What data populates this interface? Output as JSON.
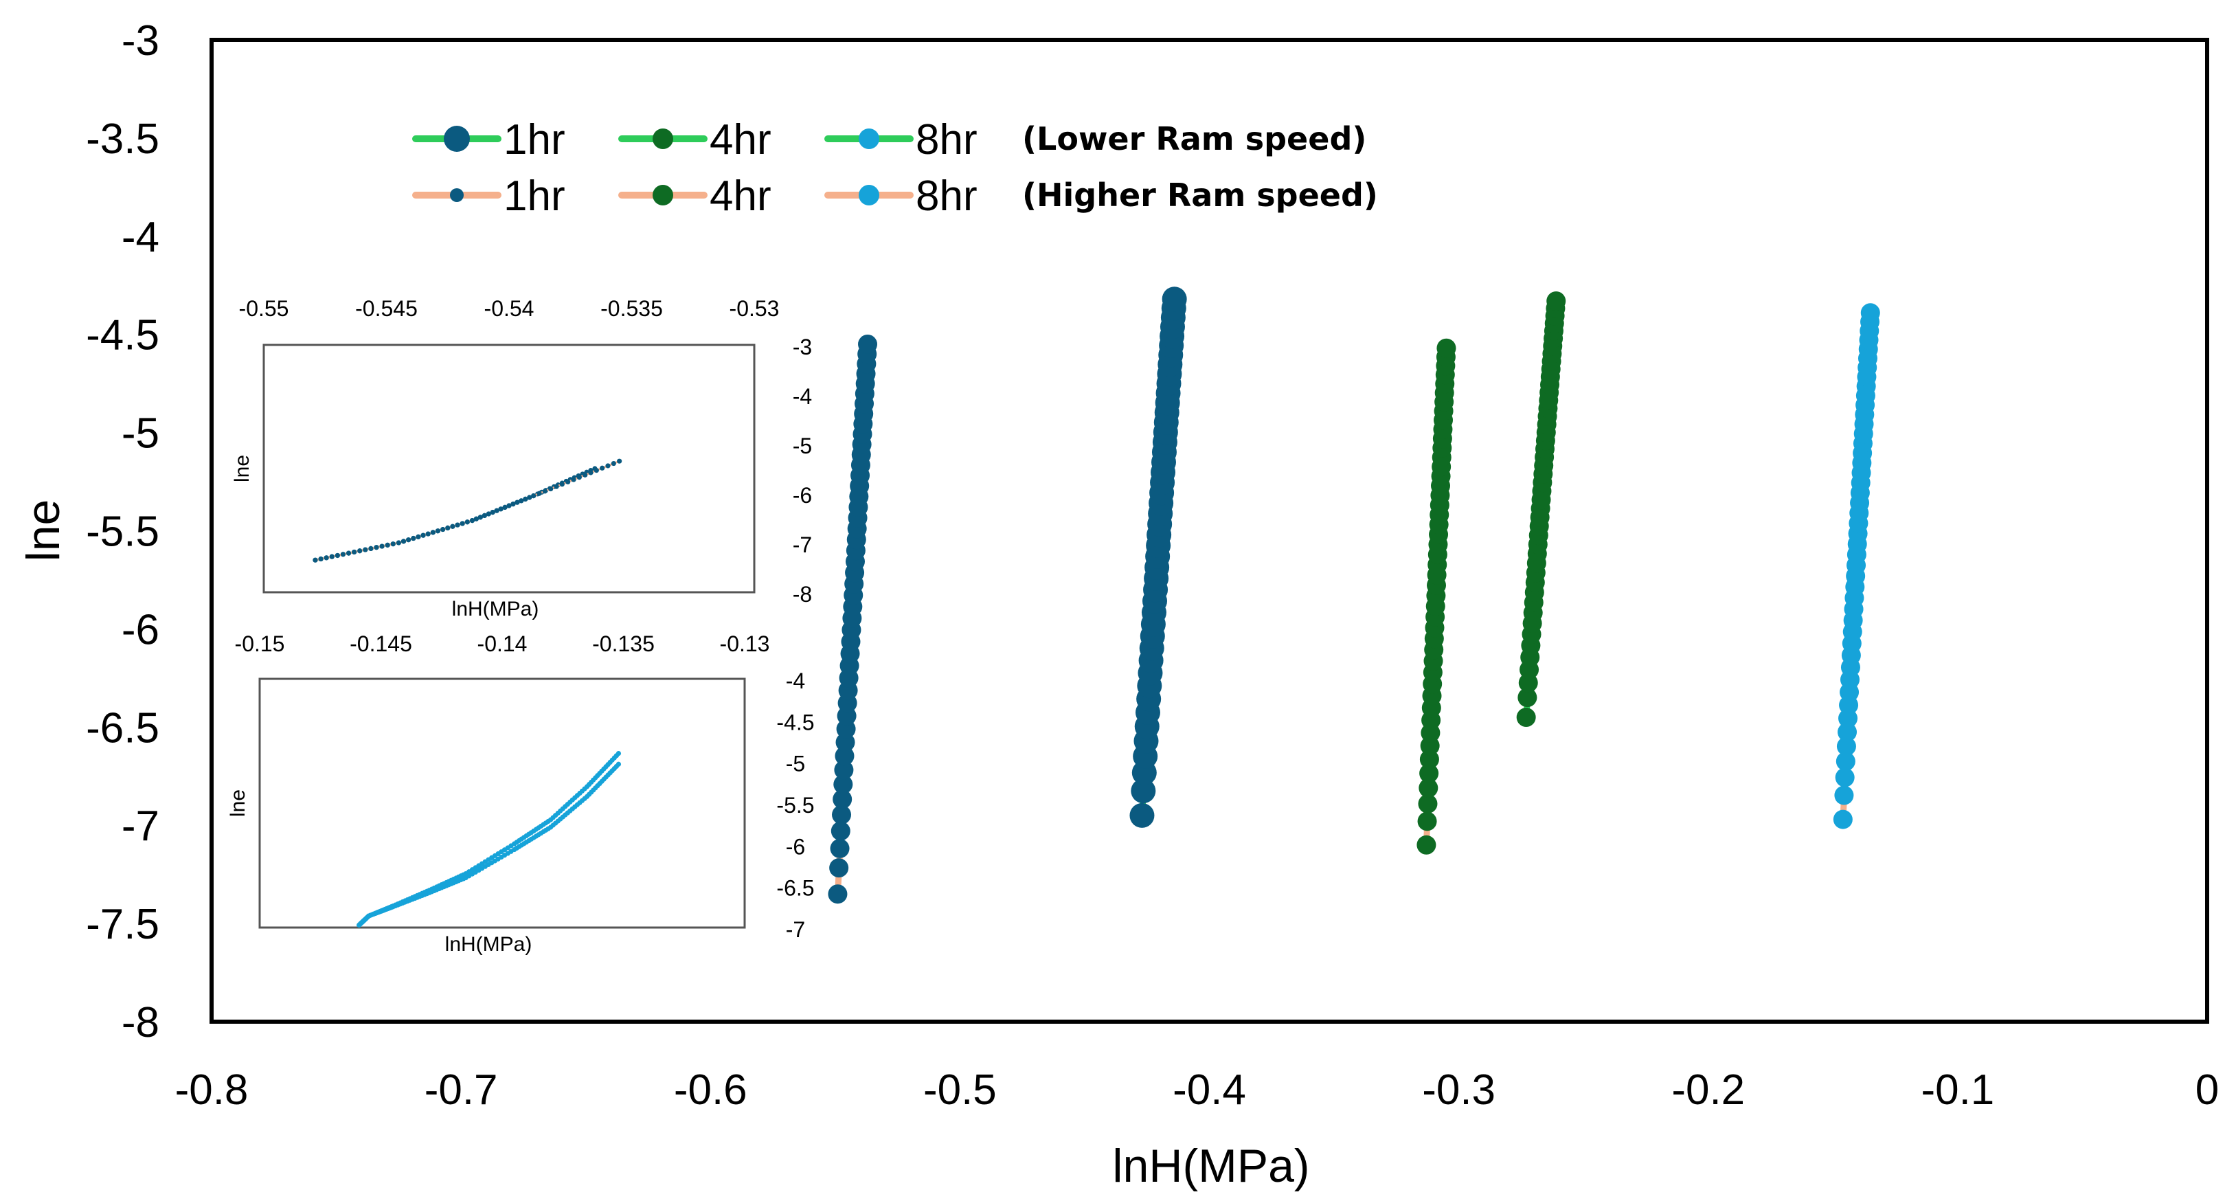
{
  "chart_data": {
    "type": "line",
    "title": "",
    "xlabel": "lnH(MPa)",
    "ylabel": "lne",
    "xlim": [
      -0.8,
      0
    ],
    "ylim": [
      -8,
      -3
    ],
    "grid": false,
    "x_ticks": [
      "-0.8",
      "-0.7",
      "-0.6",
      "-0.5",
      "-0.4",
      "-0.3",
      "-0.2",
      "-0.1",
      "0"
    ],
    "y_ticks": [
      "-3",
      "-3.5",
      "-4",
      "-4.5",
      "-5",
      "-5.5",
      "-6",
      "-6.5",
      "-7",
      "-7.5",
      "-8"
    ],
    "colors": {
      "lower_line": "#2ecc5a",
      "higher_line": "#f5b08c",
      "c1hr": "#0b5a80",
      "c4hr": "#0e6b23",
      "c8hr": "#16a3d9"
    },
    "legend": [
      {
        "label": "1hr",
        "group": "lower",
        "marker_color": "#0b5a80",
        "line_color": "#2ecc5a",
        "size": "large"
      },
      {
        "label": "4hr",
        "group": "lower",
        "marker_color": "#0e6b23",
        "line_color": "#2ecc5a",
        "size": "medium"
      },
      {
        "label": "8hr",
        "group": "lower",
        "marker_color": "#16a3d9",
        "line_color": "#2ecc5a",
        "size": "medium"
      },
      {
        "label": "1hr",
        "group": "higher",
        "marker_color": "#0b5a80",
        "line_color": "#f5b08c",
        "size": "small"
      },
      {
        "label": "4hr",
        "group": "higher",
        "marker_color": "#0e6b23",
        "line_color": "#f5b08c",
        "size": "medium"
      },
      {
        "label": "8hr",
        "group": "higher",
        "marker_color": "#16a3d9",
        "line_color": "#f5b08c",
        "size": "medium"
      }
    ],
    "legend_notes": [
      "(Lower Ram speed)",
      "(Higher Ram speed)"
    ],
    "series": [
      {
        "name": "1hr (Higher Ram speed)",
        "marker_color": "#0b5a80",
        "line_color": "#f5b08c",
        "marker": "medium",
        "x": [
          -0.549,
          -0.537
        ],
        "y": [
          -7.35,
          -4.55
        ]
      },
      {
        "name": "1hr (Lower Ram speed)",
        "marker_color": "#0b5a80",
        "line_color": "#2ecc5a",
        "marker": "large",
        "x": [
          -0.427,
          -0.414
        ],
        "y": [
          -6.95,
          -4.32
        ]
      },
      {
        "name": "4hr (Higher Ram speed)",
        "marker_color": "#0e6b23",
        "line_color": "#f5b08c",
        "marker": "medium",
        "x": [
          -0.313,
          -0.305
        ],
        "y": [
          -7.1,
          -4.57
        ]
      },
      {
        "name": "4hr (Lower Ram speed)",
        "marker_color": "#0e6b23",
        "line_color": "#2ecc5a",
        "marker": "medium",
        "x": [
          -0.273,
          -0.261
        ],
        "y": [
          -6.45,
          -4.33
        ]
      },
      {
        "name": "8hr (Higher Ram speed)",
        "marker_color": "#16a3d9",
        "line_color": "#f5b08c",
        "marker": "medium",
        "x": [
          -0.146,
          -0.135
        ],
        "y": [
          -6.97,
          -4.39
        ]
      }
    ],
    "insets": [
      {
        "xlabel": "lnH(MPa)",
        "ylabel": "lne",
        "xlim": [
          -0.55,
          -0.53
        ],
        "ylim": [
          -8,
          -3
        ],
        "x_ticks": [
          "-0.55",
          "-0.545",
          "-0.54",
          "-0.535",
          "-0.53"
        ],
        "y_ticks": [
          "-3",
          "-4",
          "-5",
          "-6",
          "-7",
          "-8"
        ],
        "series": [
          {
            "name": "1hr (Lower Ram speed)",
            "line_color": "#2ecc5a",
            "marker_color": "#0b5a80",
            "x": [
              -0.5479,
              -0.5445,
              -0.5415,
              -0.539,
              -0.5365
            ],
            "y": [
              -7.35,
              -7.0,
              -6.55,
              -6.05,
              -5.5
            ]
          },
          {
            "name": "1hr (Higher Ram speed)",
            "line_color": "#f5b08c",
            "marker_color": "#0b5a80",
            "x": [
              -0.5479,
              -0.5445,
              -0.5415,
              -0.539,
              -0.5355
            ],
            "y": [
              -7.35,
              -7.0,
              -6.55,
              -6.05,
              -5.35
            ]
          }
        ]
      },
      {
        "xlabel": "lnH(MPa)",
        "ylabel": "lne",
        "xlim": [
          -0.15,
          -0.13
        ],
        "ylim": [
          -7,
          -4
        ],
        "x_ticks": [
          "-0.15",
          "-0.145",
          "-0.14",
          "-0.135",
          "-0.13"
        ],
        "y_ticks": [
          "-4",
          "-4.5",
          "-5",
          "-5.5",
          "-6",
          "-6.5",
          "-7"
        ],
        "series": [
          {
            "name": "8hr (Lower Ram speed)",
            "line_color": "#2ecc5a",
            "marker_color": "#16a3d9",
            "x": [
              -0.1459,
              -0.1455,
              -0.1445,
              -0.143,
              -0.1415,
              -0.1395,
              -0.138,
              -0.1365,
              -0.1352
            ],
            "y": [
              -6.97,
              -6.86,
              -6.75,
              -6.58,
              -6.4,
              -6.06,
              -5.79,
              -5.42,
              -5.03
            ]
          },
          {
            "name": "8hr (Higher Ram speed)",
            "line_color": "#f5b08c",
            "marker_color": "#16a3d9",
            "x": [
              -0.1459,
              -0.1455,
              -0.1445,
              -0.143,
              -0.1415,
              -0.1395,
              -0.138,
              -0.1365,
              -0.1352
            ],
            "y": [
              -6.97,
              -6.86,
              -6.74,
              -6.55,
              -6.35,
              -5.99,
              -5.7,
              -5.3,
              -4.9
            ]
          }
        ]
      }
    ]
  }
}
